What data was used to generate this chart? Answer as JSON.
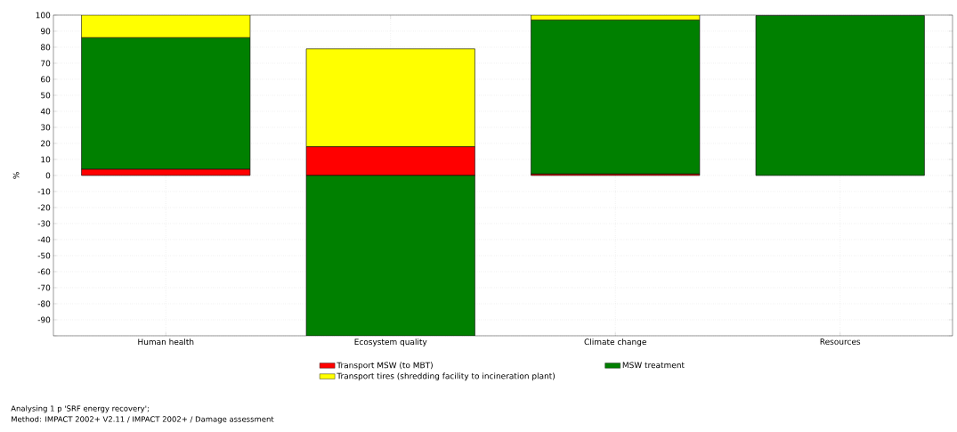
{
  "chart_data": {
    "type": "bar",
    "stacked": true,
    "ylabel": "%",
    "categories": [
      "Human health",
      "Ecosystem quality",
      "Climate change",
      "Resources"
    ],
    "series": [
      {
        "name": "Transport MSW (to MBT)",
        "color": "#ff0000",
        "values": [
          4,
          18,
          1,
          null
        ]
      },
      {
        "name": "MSW treatment",
        "color": "#008000",
        "values": [
          82,
          -100,
          96,
          99.7
        ]
      },
      {
        "name": "Transport tires (shredding facility to incineration plant)",
        "color": "#ffff00",
        "values": [
          14,
          61,
          3,
          0
        ]
      }
    ],
    "ylim": [
      -100,
      100
    ],
    "yticks": [
      {
        "value": -100,
        "label": null
      },
      -90,
      -80,
      -70,
      -60,
      -50,
      -40,
      -30,
      -20,
      -10,
      0,
      10,
      20,
      30,
      40,
      50,
      60,
      70,
      80,
      90,
      100
    ],
    "grid": true,
    "legend": "bottom",
    "annotations": [
      "Analysing 1 p 'SRF energy recovery';",
      "Method: IMPACT 2002+ V2.11 / IMPACT 2002+ / Damage assessment"
    ]
  }
}
